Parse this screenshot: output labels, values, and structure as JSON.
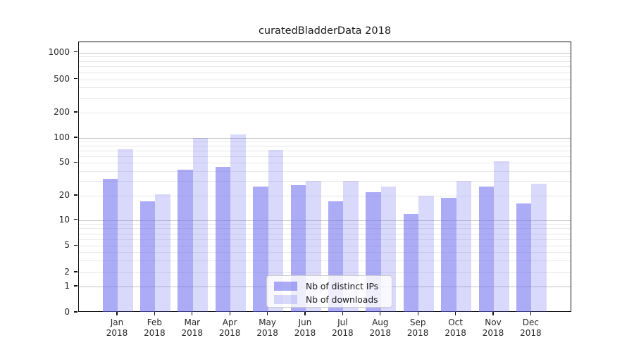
{
  "title": "curatedBladderData 2018",
  "legend": {
    "items": [
      {
        "label": "Nb of distinct IPs",
        "color": "rgba(102,102,238,0.55)",
        "color_hex": "#ababf5"
      },
      {
        "label": "Nb of downloads",
        "color": "rgba(102,102,238,0.25)",
        "color_hex": "#d9d9fb"
      }
    ],
    "position": "lower center"
  },
  "chart_data": {
    "type": "bar",
    "title": "curatedBladderData 2018",
    "categories": [
      "Jan 2018",
      "Feb 2018",
      "Mar 2018",
      "Apr 2018",
      "May 2018",
      "Jun 2018",
      "Jul 2018",
      "Aug 2018",
      "Sep 2018",
      "Oct 2018",
      "Nov 2018",
      "Dec 2018"
    ],
    "series": [
      {
        "name": "Nb of distinct IPs",
        "color": "rgba(102,102,238,0.55)",
        "color_hex": "#ababf5",
        "values": [
          32,
          17,
          41,
          45,
          26,
          27,
          17,
          22,
          12,
          19,
          26,
          16
        ]
      },
      {
        "name": "Nb of downloads",
        "color": "rgba(102,102,238,0.25)",
        "color_hex": "#d9d9fb",
        "values": [
          73,
          21,
          100,
          110,
          72,
          30,
          30,
          26,
          20,
          30,
          52,
          28
        ]
      }
    ],
    "xlabel": "",
    "ylabel": "",
    "y_scale": "symlog",
    "y_ticks": [
      1000,
      500,
      200,
      100,
      50,
      20,
      10,
      5,
      2,
      1,
      0
    ],
    "ylim": [
      0,
      1500
    ],
    "grid": "horizontal, log minor + major",
    "legend_position": "lower center"
  }
}
